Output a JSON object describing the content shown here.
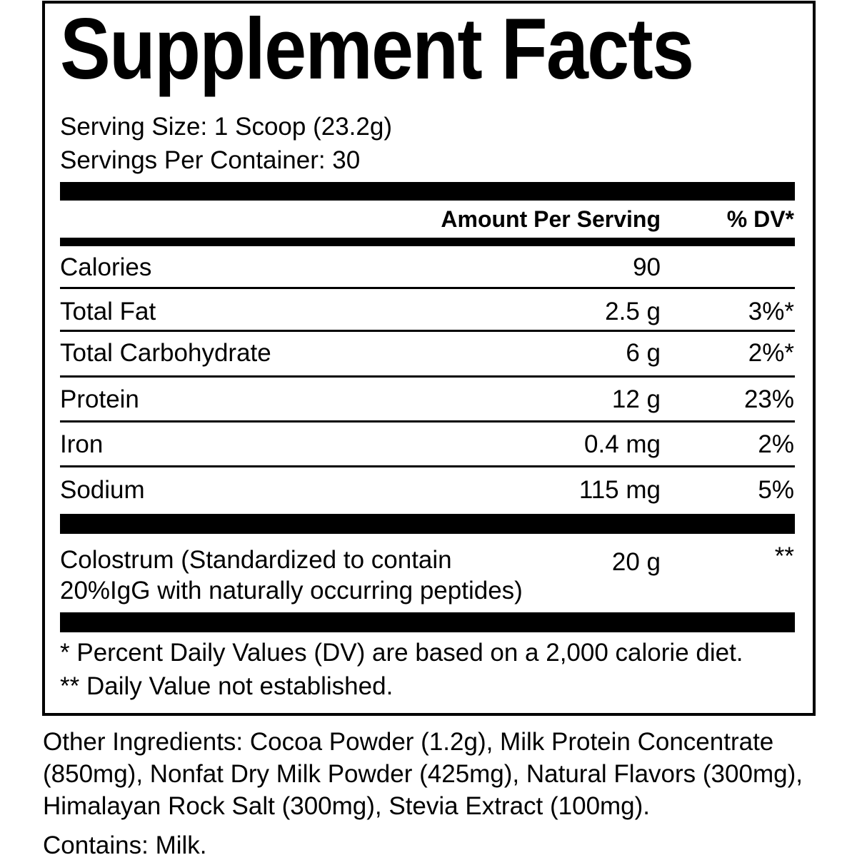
{
  "title": "Supplement Facts",
  "serving_size": "Serving Size: 1 Scoop (23.2g)",
  "servings_per_container": "Servings Per Container: 30",
  "header": {
    "amount": "Amount Per Serving",
    "dv": "% DV*"
  },
  "rows": [
    {
      "name": "Calories",
      "amount": "90",
      "dv": ""
    },
    {
      "name": "Total Fat",
      "amount": "2.5 g",
      "dv": "3%*"
    },
    {
      "name": "Total Carbohydrate",
      "amount": "6 g",
      "dv": "2%*"
    },
    {
      "name": "Protein",
      "amount": "12 g",
      "dv": "23%"
    },
    {
      "name": "Iron",
      "amount": "0.4 mg",
      "dv": "2%"
    },
    {
      "name": "Sodium",
      "amount": "115 mg",
      "dv": "5%"
    }
  ],
  "colostrum": {
    "line1": "Colostrum (Standardized to contain",
    "line2": "20%IgG with naturally occurring peptides)",
    "amount": "20 g",
    "dv": "**"
  },
  "footnotes": [
    "* Percent Daily Values (DV) are based on a 2,000 calorie diet.",
    "** Daily Value not established."
  ],
  "other_ingredients": [
    "Other Ingredients: Cocoa Powder (1.2g), Milk Protein Concentrate",
    "(850mg), Nonfat Dry Milk Powder (425mg), Natural Flavors (300mg),",
    "Himalayan Rock Salt (300mg), Stevia Extract (100mg)."
  ],
  "contains": "Contains: Milk."
}
